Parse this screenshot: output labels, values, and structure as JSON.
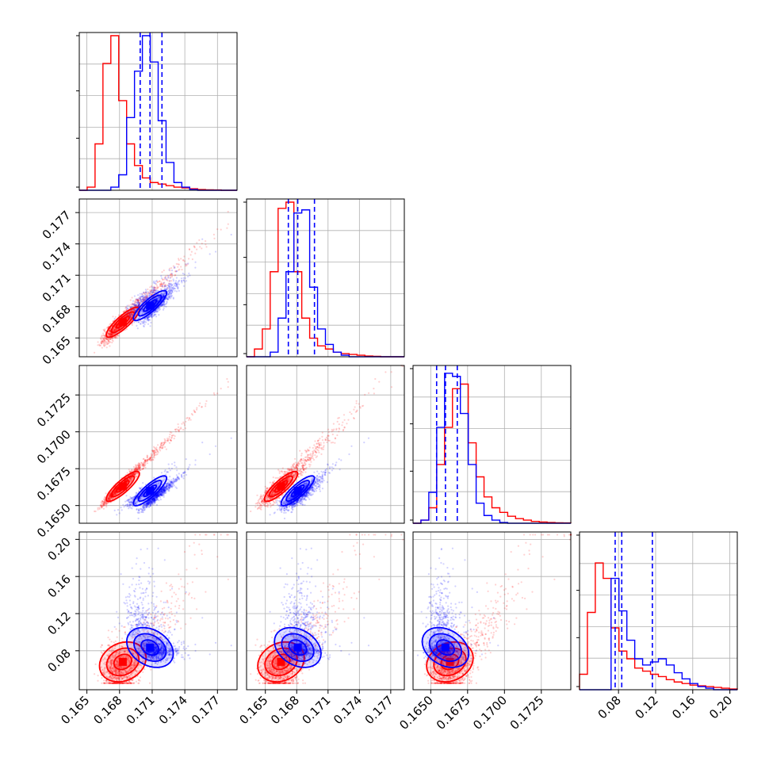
{
  "chart_data": {
    "type": "scatter",
    "subtype": "corner-plot",
    "grid": true,
    "colors": {
      "red": "#ff0000",
      "blue": "#0000ff",
      "grid": "#b0b0b0"
    },
    "series": [
      {
        "color": "#ff0000",
        "median": [
          0.1683,
          0.1665,
          0.1663,
          0.068
        ]
      },
      {
        "color": "#0000ff",
        "median": [
          0.1708,
          0.1681,
          0.166,
          0.0835
        ]
      }
    ],
    "parameters": [
      {
        "range": [
          0.1643,
          0.1788
        ],
        "ticks": [
          0.165,
          0.168,
          0.171,
          0.174,
          0.177
        ],
        "tick_labels": [
          "0.165",
          "0.168",
          "0.171",
          "0.174",
          "0.177"
        ],
        "quantiles_blue": [
          0.1699,
          0.1708,
          0.1719
        ],
        "hist_red": [
          0,
          0.02,
          0.3,
          0.82,
          1.0,
          0.58,
          0.3,
          0.16,
          0.08,
          0.05,
          0.04,
          0.03,
          0.02,
          0.015,
          0.01,
          0.005,
          0.003,
          0.002,
          0,
          0
        ],
        "hist_blue": [
          0,
          0,
          0,
          0,
          0.02,
          0.1,
          0.47,
          0.77,
          1.0,
          0.83,
          0.45,
          0.18,
          0.05,
          0.02,
          0.005,
          0,
          0,
          0,
          0,
          0
        ]
      },
      {
        "range": [
          0.1632,
          0.1783
        ],
        "ticks": [
          0.165,
          0.168,
          0.171,
          0.174,
          0.177
        ],
        "tick_labels": [
          "0.165",
          "0.168",
          "0.171",
          "0.174",
          "0.177"
        ],
        "quantiles_blue": [
          0.1672,
          0.1681,
          0.1697
        ],
        "hist_red": [
          0,
          0.05,
          0.18,
          0.55,
          0.96,
          1.0,
          0.55,
          0.25,
          0.12,
          0.07,
          0.05,
          0.03,
          0.02,
          0.015,
          0.01,
          0.005,
          0.003,
          0,
          0,
          0
        ],
        "hist_blue": [
          0,
          0,
          0,
          0.03,
          0.25,
          0.55,
          0.93,
          0.95,
          0.45,
          0.18,
          0.08,
          0.03,
          0.01,
          0,
          0,
          0,
          0,
          0,
          0,
          0
        ]
      },
      {
        "range": [
          0.1638,
          0.1745
        ],
        "ticks": [
          0.165,
          0.1675,
          0.17,
          0.1725
        ],
        "tick_labels": [
          "0.1650",
          "0.1675",
          "0.1700",
          "0.1725"
        ],
        "quantiles_blue": [
          0.1654,
          0.166,
          0.1668
        ],
        "hist_red": [
          0,
          0.02,
          0.1,
          0.38,
          0.62,
          0.87,
          0.9,
          0.52,
          0.3,
          0.17,
          0.1,
          0.07,
          0.045,
          0.03,
          0.02,
          0.012,
          0.008,
          0.005,
          0.003,
          0.002
        ],
        "hist_blue": [
          0,
          0.02,
          0.2,
          0.62,
          0.97,
          0.95,
          0.71,
          0.38,
          0.13,
          0.05,
          0.02,
          0.005,
          0,
          0,
          0,
          0,
          0,
          0,
          0,
          0
        ]
      },
      {
        "range": [
          0.038,
          0.208
        ],
        "ticks": [
          0.08,
          0.12,
          0.16,
          0.2
        ],
        "tick_labels": [
          "0.08",
          "0.12",
          "0.16",
          "0.20"
        ],
        "quantiles_blue": [
          0.0764,
          0.0835,
          0.1165
        ],
        "hist_red": [
          0.1,
          0.5,
          0.82,
          0.72,
          0.4,
          0.25,
          0.2,
          0.14,
          0.12,
          0.1,
          0.085,
          0.065,
          0.05,
          0.04,
          0.03,
          0.025,
          0.02,
          0.015,
          0.01,
          0.005
        ],
        "hist_blue": [
          0,
          0,
          0,
          0,
          0.72,
          0.51,
          0.32,
          0.2,
          0.16,
          0.18,
          0.2,
          0.16,
          0.11,
          0.07,
          0.04,
          0.02,
          0.01,
          0,
          0,
          0
        ]
      }
    ]
  }
}
